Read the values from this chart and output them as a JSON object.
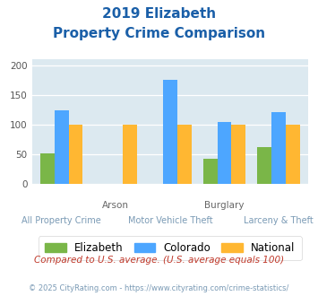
{
  "title_line1": "2019 Elizabeth",
  "title_line2": "Property Crime Comparison",
  "categories": [
    "All Property Crime",
    "Arson",
    "Motor Vehicle Theft",
    "Burglary",
    "Larceny & Theft"
  ],
  "elizabeth": [
    51,
    0,
    0,
    42,
    62
  ],
  "colorado": [
    123,
    0,
    175,
    104,
    120
  ],
  "national": [
    100,
    100,
    100,
    100,
    100
  ],
  "bar_width": 0.26,
  "ylim": [
    0,
    210
  ],
  "yticks": [
    0,
    50,
    100,
    150,
    200
  ],
  "color_elizabeth": "#7ab648",
  "color_colorado": "#4da6ff",
  "color_national": "#ffb732",
  "bg_color": "#dce9f0",
  "title_color": "#1a5fa8",
  "xlabel_color_top": "#666666",
  "xlabel_color_bottom": "#7a9ab5",
  "footer_text": "Compared to U.S. average. (U.S. average equals 100)",
  "footer_color": "#c0392b",
  "credit_text": "© 2025 CityRating.com - https://www.cityrating.com/crime-statistics/",
  "credit_color": "#7a9ab5",
  "legend_labels": [
    "Elizabeth",
    "Colorado",
    "National"
  ]
}
